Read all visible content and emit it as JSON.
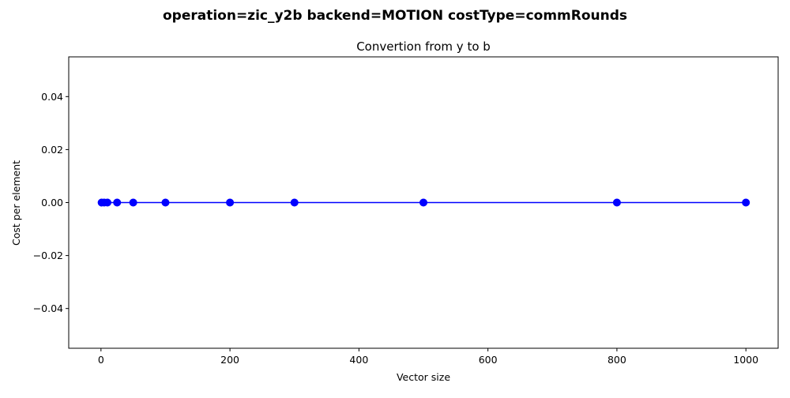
{
  "chart_data": {
    "type": "line",
    "suptitle": "operation=zic_y2b backend=MOTION costType=commRounds",
    "title": "Convertion from y to b",
    "xlabel": "Vector size",
    "ylabel": "Cost per element",
    "xlim": [
      -50,
      1050
    ],
    "ylim": [
      -0.055,
      0.055
    ],
    "xticks": [
      0,
      200,
      400,
      600,
      800,
      1000
    ],
    "xtick_labels": [
      "0",
      "200",
      "400",
      "600",
      "800",
      "1000"
    ],
    "yticks": [
      -0.04,
      -0.02,
      0.0,
      0.02,
      0.04
    ],
    "ytick_labels": [
      "−0.04",
      "−0.02",
      "0.00",
      "0.02",
      "0.04"
    ],
    "grid": false,
    "series": [
      {
        "color": "#0000ff",
        "marker": "circle",
        "x": [
          1,
          5,
          10,
          25,
          50,
          100,
          200,
          300,
          500,
          800,
          1000
        ],
        "y": [
          0,
          0,
          0,
          0,
          0,
          0,
          0,
          0,
          0,
          0,
          0
        ]
      }
    ]
  }
}
